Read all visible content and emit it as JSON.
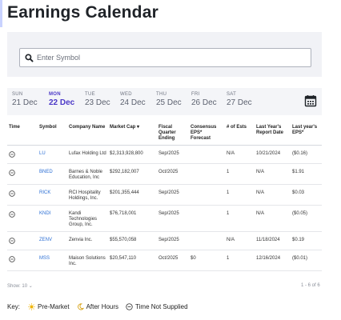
{
  "page": {
    "title": "Earnings Calendar"
  },
  "search": {
    "placeholder": "Enter Symbol",
    "icon": "search-icon"
  },
  "days": [
    {
      "name": "SUN",
      "date": "21 Dec"
    },
    {
      "name": "MON",
      "date": "22 Dec",
      "active": true
    },
    {
      "name": "TUE",
      "date": "23 Dec"
    },
    {
      "name": "WED",
      "date": "24 Dec"
    },
    {
      "name": "THU",
      "date": "25 Dec"
    },
    {
      "name": "FRI",
      "date": "26 Dec"
    },
    {
      "name": "SAT",
      "date": "27 Dec"
    }
  ],
  "table": {
    "headers": {
      "time": "Time",
      "symbol": "Symbol",
      "company": "Company Name",
      "market_cap": "Market Cap",
      "fiscal": "Fiscal Quarter Ending",
      "consensus": "Consensus EPS* Forecast",
      "ests": "# of Ests",
      "last_report": "Last Year's Report Date",
      "last_eps": "Last year's EPS*"
    },
    "rows": [
      {
        "symbol": "LU",
        "company": "Lufax Holding Ltd",
        "market_cap": "$2,313,928,800",
        "fiscal": "Sep/2025",
        "consensus": "",
        "ests": "N/A",
        "last_report": "10/21/2024",
        "last_eps": "($0.16)"
      },
      {
        "symbol": "BNED",
        "company": "Barnes & Noble Education, Inc",
        "market_cap": "$292,182,007",
        "fiscal": "Oct/2025",
        "consensus": "",
        "ests": "1",
        "last_report": "N/A",
        "last_eps": "$1.91"
      },
      {
        "symbol": "RICK",
        "company": "RCI Hospitality Holdings, Inc.",
        "market_cap": "$201,355,444",
        "fiscal": "Sep/2025",
        "consensus": "",
        "ests": "1",
        "last_report": "N/A",
        "last_eps": "$0.03"
      },
      {
        "symbol": "KNDI",
        "company": "Kandi Technologies Group, Inc.",
        "market_cap": "$76,718,001",
        "fiscal": "Sep/2025",
        "consensus": "",
        "ests": "1",
        "last_report": "N/A",
        "last_eps": "($0.05)"
      },
      {
        "symbol": "ZENV",
        "company": "Zenvia Inc.",
        "market_cap": "$55,570,058",
        "fiscal": "Sep/2025",
        "consensus": "",
        "ests": "N/A",
        "last_report": "11/18/2024",
        "last_eps": "$0.19"
      },
      {
        "symbol": "MSS",
        "company": "Maison Solutions Inc.",
        "market_cap": "$20,547,110",
        "fiscal": "Oct/2025",
        "consensus": "$0",
        "ests": "1",
        "last_report": "12/16/2024",
        "last_eps": "($0.01)"
      }
    ]
  },
  "footer": {
    "show_label": "Show:",
    "show_value": "10",
    "range": "1 - 6 of 6"
  },
  "legend": {
    "key_label": "Key:",
    "items": [
      {
        "label": "Pre-Market",
        "icon": "sun-icon"
      },
      {
        "label": "After Hours",
        "icon": "moon-icon"
      },
      {
        "label": "Time Not Supplied",
        "icon": "dash-circle-icon"
      }
    ]
  },
  "colors": {
    "accent": "#4b38c7",
    "link": "#2c6fd4",
    "panel": "#f1f2f6"
  }
}
